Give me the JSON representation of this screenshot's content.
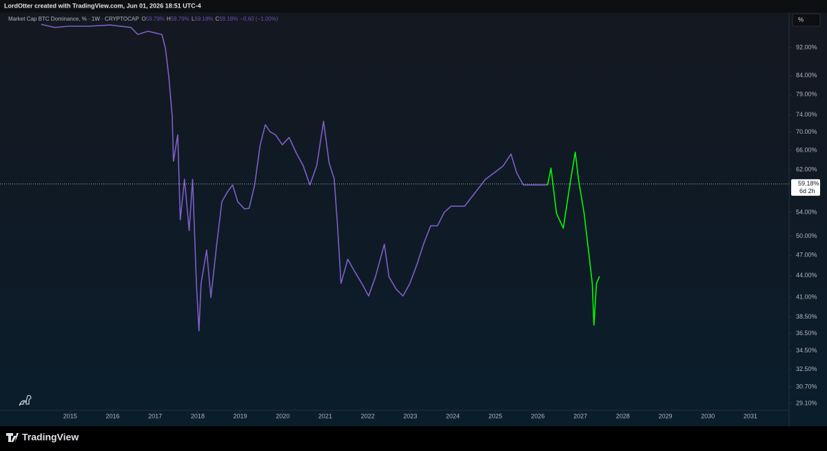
{
  "header": "LordOtter created with TradingView.com, Jun 01, 2026 18:51 UTC-4",
  "footer_brand": "TradingView",
  "scale_button": "%",
  "legend": {
    "symbol": "Market Cap BTC Dominance, % · 1W · CRYPTOCAP",
    "ohlc": [
      {
        "key": "O",
        "value": "59.79%"
      },
      {
        "key": "H",
        "value": "59.79%"
      },
      {
        "key": "L",
        "value": "59.18%"
      },
      {
        "key": "C",
        "value": "59.18%"
      }
    ],
    "change": "−0.60 (−1.00%)"
  },
  "chart_data": {
    "type": "line",
    "log_scale": true,
    "last_price": {
      "value": 59.18,
      "label": "59.18%"
    },
    "countdown": "6d 2h",
    "xlim": [
      2013.35,
      2031.91
    ],
    "xticks": [
      2015,
      2016,
      2017,
      2018,
      2019,
      2020,
      2021,
      2022,
      2023,
      2024,
      2025,
      2026,
      2027,
      2028,
      2029,
      2030,
      2031
    ],
    "ylim": [
      28.46,
      103.1
    ],
    "yticks": [
      {
        "value": 92,
        "label": "92.00%"
      },
      {
        "value": 84,
        "label": "84.00%"
      },
      {
        "value": 79,
        "label": "79.00%"
      },
      {
        "value": 74,
        "label": "74.00%"
      },
      {
        "value": 70,
        "label": "70.00%"
      },
      {
        "value": 66,
        "label": "66.00%"
      },
      {
        "value": 62,
        "label": "62.00%"
      },
      {
        "value": 54,
        "label": "54.00%"
      },
      {
        "value": 50,
        "label": "50.00%"
      },
      {
        "value": 47,
        "label": "47.00%"
      },
      {
        "value": 44,
        "label": "44.00%"
      },
      {
        "value": 41,
        "label": "41.00%"
      },
      {
        "value": 38.5,
        "label": "38.50%"
      },
      {
        "value": 36.5,
        "label": "36.50%"
      },
      {
        "value": 34.5,
        "label": "34.50%"
      },
      {
        "value": 32.5,
        "label": "32.50%"
      },
      {
        "value": 30.7,
        "label": "30.70%"
      },
      {
        "value": 29.1,
        "label": "29.10%"
      }
    ],
    "series": [
      {
        "color": "#7e5fc9",
        "x": [
          2014.32,
          2014.64,
          2014.97,
          2015.45,
          2015.94,
          2016.43,
          2016.59,
          2016.83,
          2017.16,
          2017.24,
          2017.32,
          2017.4,
          2017.43,
          2017.53,
          2017.59,
          2017.69,
          2017.8,
          2017.88,
          2017.97,
          2018.03,
          2018.08,
          2018.21,
          2018.31,
          2018.45,
          2018.57,
          2018.7,
          2018.82,
          2018.94,
          2019.1,
          2019.21,
          2019.34,
          2019.47,
          2019.59,
          2019.7,
          2019.83,
          2019.99,
          2020.15,
          2020.32,
          2020.48,
          2020.64,
          2020.8,
          2020.96,
          2021.09,
          2021.21,
          2021.29,
          2021.37,
          2021.53,
          2021.69,
          2021.86,
          2022.02,
          2022.18,
          2022.39,
          2022.5,
          2022.67,
          2022.83,
          2022.99,
          2023.15,
          2023.31,
          2023.48,
          2023.64,
          2023.8,
          2023.96,
          2024.12,
          2024.28,
          2024.53,
          2024.77,
          2024.98,
          2025.18,
          2025.37,
          2025.5,
          2025.66,
          2025.83,
          2025.99,
          2026.23
        ],
        "values": [
          99.2,
          98.2,
          98.6,
          98.6,
          99.0,
          98.2,
          96.0,
          97.0,
          96.0,
          91.8,
          83.9,
          73.7,
          63.7,
          69.4,
          52.7,
          60.1,
          50.9,
          60.1,
          42.9,
          36.8,
          42.9,
          47.8,
          41.0,
          48.8,
          55.9,
          57.7,
          59.0,
          55.9,
          54.6,
          54.7,
          59.0,
          67.2,
          71.7,
          70.1,
          69.4,
          67.2,
          68.8,
          65.4,
          62.8,
          59.0,
          62.8,
          72.5,
          63.4,
          60.2,
          51.6,
          42.9,
          46.4,
          44.6,
          42.9,
          41.2,
          43.8,
          48.7,
          43.8,
          42.1,
          41.2,
          42.9,
          45.5,
          48.7,
          51.7,
          51.7,
          54.0,
          55.1,
          55.1,
          55.1,
          57.6,
          60.1,
          61.4,
          62.7,
          65.2,
          61.4,
          59.0,
          59.0,
          59.0,
          59.0
        ]
      },
      {
        "color": "#00ff00",
        "x": [
          2026.23,
          2026.31,
          2026.44,
          2026.6,
          2026.77,
          2026.88,
          2026.96,
          2027.09,
          2027.2,
          2027.28,
          2027.32,
          2027.38,
          2027.45
        ],
        "values": [
          59.0,
          62.3,
          53.8,
          51.3,
          59.9,
          65.6,
          59.9,
          53.8,
          47.3,
          42.9,
          37.5,
          42.9,
          43.9
        ]
      }
    ]
  }
}
